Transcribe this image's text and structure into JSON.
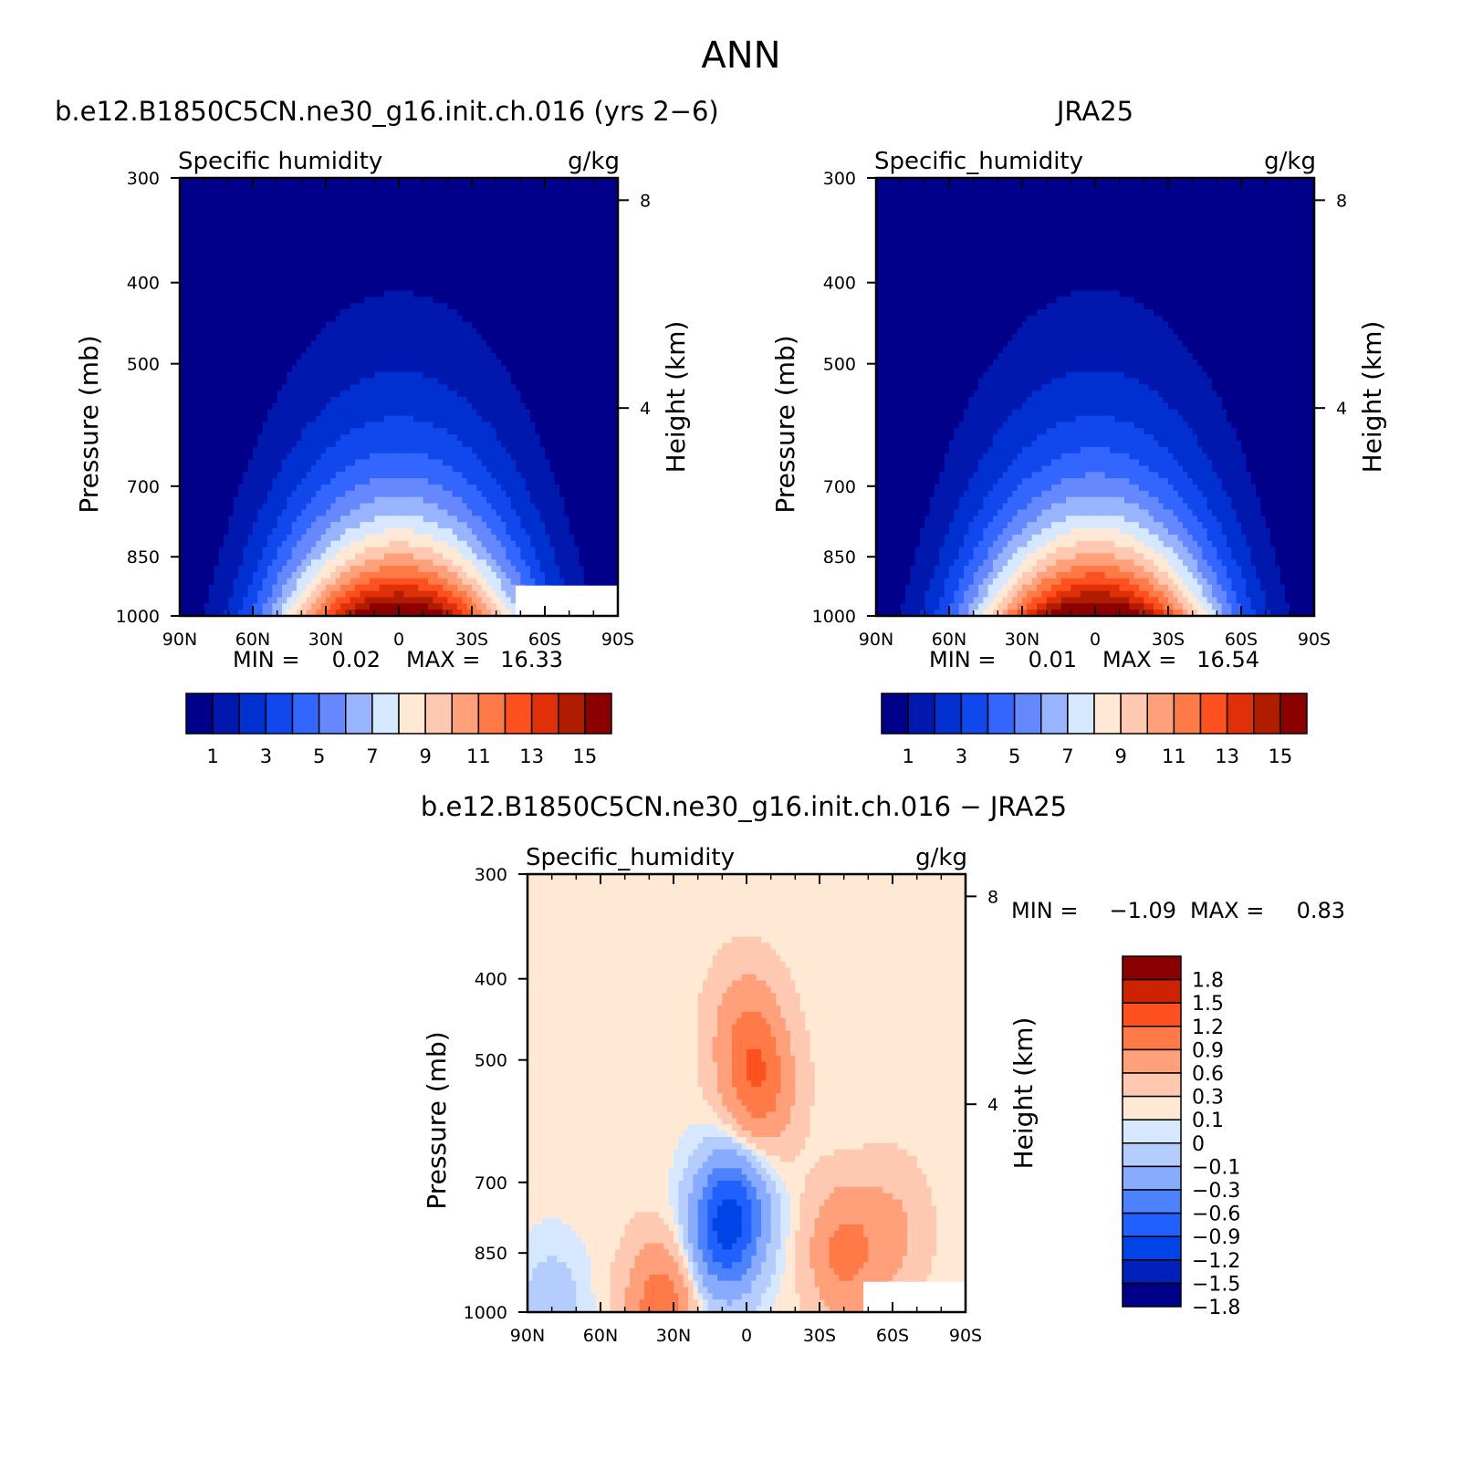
{
  "figure_title": "ANN",
  "chart_data": [
    {
      "type": "heatmap",
      "panel": "model",
      "case_title": "b.e12.B1850C5CN.ne30_g16.init.ch.016 (yrs 2-6)",
      "variable": "Specific humidity",
      "units": "g/kg",
      "xlabel": "",
      "ylabel": "Pressure (mb)",
      "ylabel_right": "Height (km)",
      "x_ticks": [
        "90N",
        "60N",
        "30N",
        "0",
        "30S",
        "60S",
        "90S"
      ],
      "y_ticks": [
        "300",
        "400",
        "500",
        "700",
        "850",
        "1000"
      ],
      "y_ticks_right": [
        "8",
        "4"
      ],
      "ylim": [
        1000,
        300
      ],
      "min_label": "MIN =",
      "min_value": "0.02",
      "max_label": "MAX =",
      "max_value": "16.33",
      "contour_levels": [
        1,
        2,
        3,
        4,
        5,
        6,
        7,
        8,
        9,
        10,
        11,
        12,
        13,
        14,
        15
      ],
      "colorbar_labels": [
        "1",
        "3",
        "5",
        "7",
        "9",
        "11",
        "13",
        "15"
      ],
      "surface_moisture_peak": 16.3
    },
    {
      "type": "heatmap",
      "panel": "obs",
      "case_title": "JRA25",
      "variable": "Specific_humidity",
      "units": "g/kg",
      "xlabel": "",
      "ylabel": "Pressure (mb)",
      "ylabel_right": "Height (km)",
      "x_ticks": [
        "90N",
        "60N",
        "30N",
        "0",
        "30S",
        "60S",
        "90S"
      ],
      "y_ticks": [
        "300",
        "400",
        "500",
        "700",
        "850",
        "1000"
      ],
      "y_ticks_right": [
        "8",
        "4"
      ],
      "ylim": [
        1000,
        300
      ],
      "min_label": "MIN =",
      "min_value": "0.01",
      "max_label": "MAX =",
      "max_value": "16.54",
      "contour_levels": [
        1,
        2,
        3,
        4,
        5,
        6,
        7,
        8,
        9,
        10,
        11,
        12,
        13,
        14,
        15
      ],
      "colorbar_labels": [
        "1",
        "3",
        "5",
        "7",
        "9",
        "11",
        "13",
        "15"
      ],
      "surface_moisture_peak": 16.5
    },
    {
      "type": "heatmap",
      "panel": "diff",
      "case_title": "b.e12.B1850C5CN.ne30_g16.init.ch.016 - JRA25",
      "variable": "Specific_humidity",
      "units": "g/kg",
      "xlabel": "",
      "ylabel": "Pressure (mb)",
      "ylabel_right": "Height (km)",
      "x_ticks": [
        "90N",
        "60N",
        "30N",
        "0",
        "30S",
        "60S",
        "90S"
      ],
      "y_ticks": [
        "300",
        "400",
        "500",
        "700",
        "850",
        "1000"
      ],
      "y_ticks_right": [
        "8",
        "4"
      ],
      "ylim": [
        1000,
        300
      ],
      "min_label": "MIN =",
      "min_value": "-1.09",
      "max_label": "MAX =",
      "max_value": "0.83",
      "contour_levels": [
        -1.8,
        -1.5,
        -1.2,
        -0.9,
        -0.6,
        -0.3,
        -0.1,
        0,
        0.1,
        0.3,
        0.6,
        0.9,
        1.2,
        1.5,
        1.8
      ],
      "colorbar_labels": [
        "1.8",
        "1.5",
        "1.2",
        "0.9",
        "0.6",
        "0.3",
        "0.1",
        "0",
        "-0.1",
        "-0.3",
        "-0.6",
        "-0.9",
        "-1.2",
        "-1.5",
        "-1.8"
      ],
      "anomalies": [
        {
          "lat": 0,
          "p": 460,
          "v": 0.45
        },
        {
          "lat": -5,
          "p": 540,
          "v": 0.7
        },
        {
          "lat": 5,
          "p": 760,
          "v": -1.0
        },
        {
          "lat": 12,
          "p": 820,
          "v": -0.6
        },
        {
          "lat": -40,
          "p": 850,
          "v": 0.65
        },
        {
          "lat": -60,
          "p": 800,
          "v": 0.3
        },
        {
          "lat": 35,
          "p": 990,
          "v": 0.8
        },
        {
          "lat": 80,
          "p": 990,
          "v": -0.25
        }
      ]
    }
  ],
  "colors": {
    "model_obs_palette": [
      "#00008b",
      "#0018ad",
      "#0030d0",
      "#1148ee",
      "#3366ff",
      "#6688ff",
      "#99b4ff",
      "#d6e8ff",
      "#ffe8d4",
      "#ffc8b0",
      "#ffa07a",
      "#ff7a46",
      "#ff5020",
      "#e03008",
      "#b01c00",
      "#8b0000"
    ],
    "diff_palette": [
      "#00008b",
      "#0022bb",
      "#0044e8",
      "#2060ff",
      "#4d82ff",
      "#89abff",
      "#b5ccff",
      "#d6e8ff",
      "#ffe8d4",
      "#ffc8b0",
      "#ffa07a",
      "#ff7a46",
      "#ff5020",
      "#cc2200",
      "#8b0000"
    ]
  }
}
